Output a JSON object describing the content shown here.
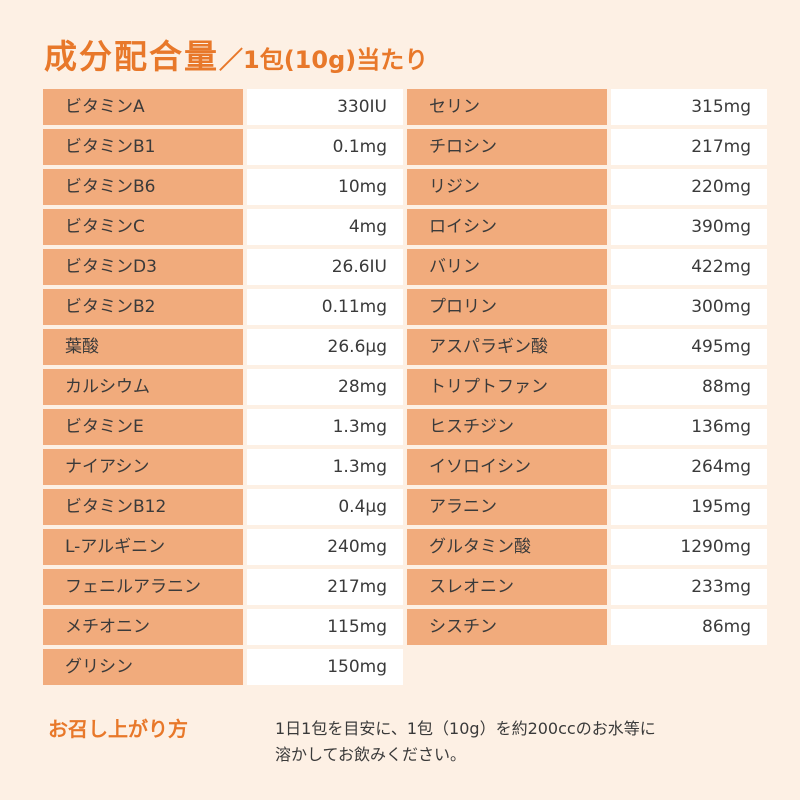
{
  "header": {
    "title": "成分配合量",
    "subtitle": "／1包(10g)当たり"
  },
  "left_table": {
    "rows": [
      [
        "ビタミンA",
        "330IU"
      ],
      [
        "ビタミンB1",
        "0.1mg"
      ],
      [
        "ビタミンB6",
        "10mg"
      ],
      [
        "ビタミンC",
        "4mg"
      ],
      [
        "ビタミンD3",
        "26.6IU"
      ],
      [
        "ビタミンB2",
        "0.11mg"
      ],
      [
        "葉酸",
        "26.6μg"
      ],
      [
        "カルシウム",
        "28mg"
      ],
      [
        "ビタミンE",
        "1.3mg"
      ],
      [
        "ナイアシン",
        "1.3mg"
      ],
      [
        "ビタミンB12",
        "0.4μg"
      ],
      [
        "L-アルギニン",
        "240mg"
      ],
      [
        "フェニルアラニン",
        "217mg"
      ],
      [
        "メチオニン",
        "115mg"
      ],
      [
        "グリシン",
        "150mg"
      ]
    ]
  },
  "right_table": {
    "rows": [
      [
        "セリン",
        "315mg"
      ],
      [
        "チロシン",
        "217mg"
      ],
      [
        "リジン",
        "220mg"
      ],
      [
        "ロイシン",
        "390mg"
      ],
      [
        "バリン",
        "422mg"
      ],
      [
        "プロリン",
        "300mg"
      ],
      [
        "アスパラギン酸",
        "495mg"
      ],
      [
        "トリプトファン",
        "88mg"
      ],
      [
        "ヒスチジン",
        "136mg"
      ],
      [
        "イソロイシン",
        "264mg"
      ],
      [
        "アラニン",
        "195mg"
      ],
      [
        "グルタミン酸",
        "1290mg"
      ],
      [
        "スレオニン",
        "233mg"
      ],
      [
        "シスチン",
        "86mg"
      ]
    ]
  },
  "usage": {
    "label": "お召し上がり方",
    "lines": [
      "1日1包を目安に、1包（10g）を約200ccのお水等に",
      "溶かしてお飲みください。"
    ]
  }
}
